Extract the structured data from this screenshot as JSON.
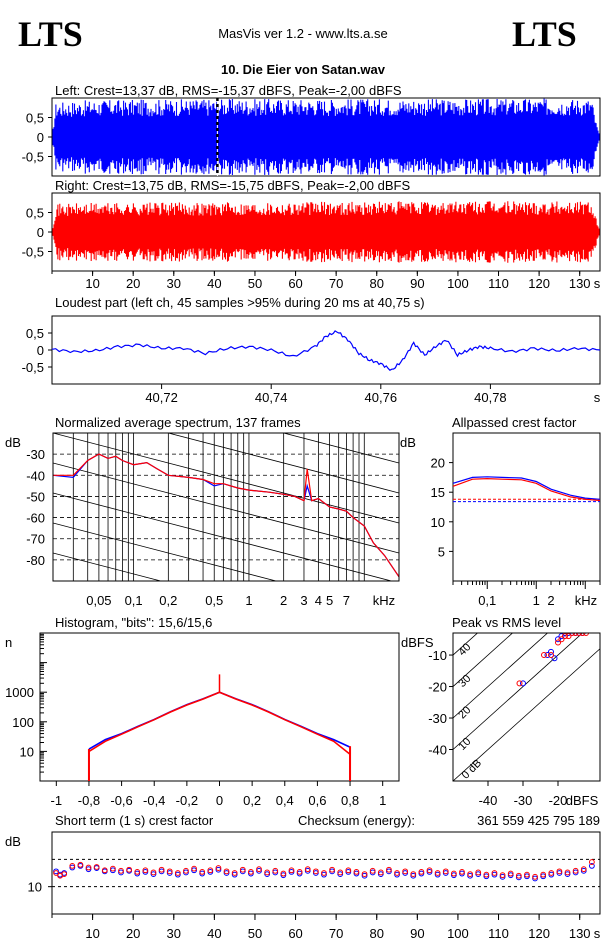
{
  "header": {
    "logo_left": "LTS",
    "logo_right": "LTS",
    "app_title": "MasVis ver 1.2 - www.lts.a.se",
    "file_title": "10. Die Eier von Satan.wav"
  },
  "colors": {
    "left": "#0000ff",
    "right": "#ff0000",
    "axis": "#000000",
    "grid": "#000000"
  },
  "chart_data": [
    {
      "id": "left_waveform",
      "type": "area",
      "title": "Left: Crest=13,37 dB, RMS=-15,37 dBFS, Peak=-2,00 dBFS",
      "ylim": [
        -1,
        1
      ],
      "yticks": [
        "0,5",
        "0",
        "-0,5"
      ],
      "xlim": [
        0,
        135
      ],
      "marker_x": 40.75,
      "envelope": [
        [
          0,
          0
        ],
        [
          1,
          0.9
        ],
        [
          10,
          0.95
        ],
        [
          40,
          0.98
        ],
        [
          100,
          0.98
        ],
        [
          133,
          0.99
        ],
        [
          134,
          0.4
        ],
        [
          135,
          0
        ]
      ],
      "color": "#0000ff"
    },
    {
      "id": "right_waveform",
      "type": "area",
      "title": "Right: Crest=13,75 dB, RMS=-15,75 dBFS, Peak=-2,00 dBFS",
      "ylim": [
        -1,
        1
      ],
      "yticks": [
        "0,5",
        "0",
        "-0,5"
      ],
      "xlim": [
        0,
        135
      ],
      "xticks": [
        "10",
        "20",
        "30",
        "40",
        "50",
        "60",
        "70",
        "80",
        "90",
        "100",
        "110",
        "120",
        "130"
      ],
      "xunit": "s",
      "envelope": [
        [
          0,
          0
        ],
        [
          1,
          0.72
        ],
        [
          10,
          0.75
        ],
        [
          70,
          0.78
        ],
        [
          120,
          0.8
        ],
        [
          133,
          0.8
        ],
        [
          134,
          0.4
        ],
        [
          135,
          0
        ]
      ],
      "color": "#ff0000"
    },
    {
      "id": "loudest_part",
      "type": "line",
      "title": "Loudest part (left  ch, 45 samples >95% during 20 ms at 40,75 s)",
      "xlim": [
        40.7,
        40.8
      ],
      "ylim": [
        -1,
        1
      ],
      "xticks": [
        "40,72",
        "40,74",
        "40,76",
        "40,78"
      ],
      "yticks": [
        "0,5",
        "0",
        "-0,5"
      ],
      "xunit": "s",
      "x": [
        40.7,
        40.704,
        40.708,
        40.712,
        40.716,
        40.72,
        40.724,
        40.728,
        40.732,
        40.736,
        40.74,
        40.744,
        40.748,
        40.75,
        40.752,
        40.754,
        40.756,
        40.758,
        40.76,
        40.762,
        40.764,
        40.766,
        40.768,
        40.77,
        40.772,
        40.774,
        40.776,
        40.778,
        40.78,
        40.784,
        40.788,
        40.792,
        40.796,
        40.8
      ],
      "y": [
        0.02,
        -0.05,
        -0.02,
        0.1,
        0.15,
        0.05,
        0.05,
        -0.1,
        0.05,
        0.1,
        0.0,
        -0.2,
        0.1,
        0.4,
        0.55,
        0.3,
        -0.1,
        -0.3,
        -0.4,
        -0.6,
        -0.3,
        0.2,
        -0.15,
        0.1,
        0.3,
        -0.15,
        0.0,
        0.1,
        0.05,
        -0.05,
        0.05,
        -0.02,
        0.05,
        0.0
      ],
      "color": "#0000ff"
    },
    {
      "id": "avg_spectrum",
      "type": "line",
      "title": "Normalized average spectrum, 137 frames",
      "ylabel": "dB",
      "xlabel": "kHz",
      "log_x": true,
      "xlim": [
        0.02,
        20
      ],
      "ylim": [
        -90,
        -20
      ],
      "yticks": [
        "-30",
        "-40",
        "-50",
        "-60",
        "-70",
        "-80"
      ],
      "xticks": [
        "0,05",
        "0,1",
        "0,2",
        "0,5",
        "1",
        "2",
        "3",
        "4",
        "5",
        "7",
        "kHz"
      ],
      "x": [
        0.02,
        0.03,
        0.04,
        0.05,
        0.06,
        0.07,
        0.08,
        0.1,
        0.13,
        0.16,
        0.2,
        0.3,
        0.4,
        0.5,
        0.6,
        0.8,
        1,
        1.5,
        2,
        2.5,
        3,
        3.2,
        3.5,
        4,
        5,
        6,
        7,
        8,
        10,
        12,
        15,
        20
      ],
      "left": [
        -40,
        -41,
        -33,
        -30,
        -32,
        -31,
        -33,
        -35,
        -34,
        -37,
        -40,
        -41,
        -42,
        -45,
        -44,
        -46,
        -47,
        -48,
        -49,
        -50,
        -52,
        -45,
        -52,
        -51,
        -55,
        -56,
        -57,
        -60,
        -64,
        -72,
        -78,
        -88
      ],
      "right": [
        -40,
        -40,
        -33,
        -30,
        -32,
        -31,
        -33,
        -35,
        -34,
        -37,
        -40,
        -41,
        -42,
        -44,
        -44,
        -46,
        -47,
        -48,
        -49,
        -50,
        -52,
        -37,
        -52,
        -51,
        -55,
        -56,
        -57,
        -60,
        -64,
        -72,
        -78,
        -88
      ]
    },
    {
      "id": "allpassed_crest",
      "type": "line",
      "title": "Allpassed crest factor",
      "ylabel": "dB",
      "xlabel": "kHz",
      "log_x": true,
      "ylim": [
        0,
        25
      ],
      "yticks": [
        "20",
        "15",
        "10",
        "5"
      ],
      "xticks": [
        "0,1",
        "1",
        "2",
        "kHz"
      ],
      "x": [
        0.02,
        0.05,
        0.1,
        0.2,
        0.5,
        1,
        2,
        5,
        10,
        20
      ],
      "left": [
        16.5,
        17.5,
        17.6,
        17.5,
        17.4,
        16.8,
        15.5,
        14.5,
        14.0,
        13.8
      ],
      "right": [
        16.0,
        17.2,
        17.3,
        17.2,
        17.1,
        16.5,
        15.2,
        14.2,
        13.8,
        13.6
      ],
      "ref_left": 13.4,
      "ref_right": 13.8
    },
    {
      "id": "histogram",
      "type": "line",
      "title": "Histogram, \"bits\": 15,6/15,6",
      "ylabel": "n",
      "log_y": true,
      "xlim": [
        -1.1,
        1.1
      ],
      "ylim": [
        1,
        100000
      ],
      "yticks": [
        "1000",
        "100",
        "10"
      ],
      "xticks": [
        "-1",
        "-0,8",
        "-0,6",
        "-0,4",
        "-0,2",
        "0",
        "0,2",
        "0,4",
        "0,6",
        "0,8",
        "1"
      ],
      "x": [
        -0.8,
        -0.7,
        -0.6,
        -0.5,
        -0.4,
        -0.3,
        -0.2,
        -0.1,
        0,
        0.1,
        0.2,
        0.3,
        0.4,
        0.5,
        0.6,
        0.7,
        0.8
      ],
      "left": [
        12,
        25,
        40,
        70,
        120,
        220,
        380,
        600,
        1000,
        600,
        380,
        220,
        120,
        70,
        40,
        25,
        14
      ],
      "right": [
        10,
        22,
        38,
        68,
        118,
        215,
        370,
        590,
        1000,
        590,
        370,
        215,
        118,
        68,
        38,
        22,
        8
      ]
    },
    {
      "id": "peak_vs_rms",
      "type": "scatter",
      "title": "Peak vs RMS level",
      "ylabel": "dBFS",
      "xlabel": "dBFS",
      "xlim": [
        -50,
        -8
      ],
      "ylim": [
        -50,
        -3
      ],
      "xticks": [
        "-40",
        "-30",
        "-20",
        "dBFS"
      ],
      "yticks": [
        "-10",
        "-20",
        "-30",
        "-40"
      ],
      "diagonal_labels": [
        "40",
        "30",
        "20",
        "10",
        "0 dB"
      ],
      "left": [
        [
          -30,
          -19
        ],
        [
          -23,
          -10
        ],
        [
          -22,
          -9
        ],
        [
          -21,
          -11
        ],
        [
          -20,
          -5
        ],
        [
          -19,
          -4
        ],
        [
          -18,
          -3
        ],
        [
          -17,
          -3
        ],
        [
          -16,
          -3
        ],
        [
          -15,
          -3
        ],
        [
          -14,
          -3
        ],
        [
          -13,
          -3
        ]
      ],
      "right": [
        [
          -31,
          -19
        ],
        [
          -24,
          -10
        ],
        [
          -22,
          -10
        ],
        [
          -20,
          -6
        ],
        [
          -19,
          -5
        ],
        [
          -18,
          -4
        ],
        [
          -17,
          -4
        ],
        [
          -16,
          -3
        ],
        [
          -15,
          -3
        ],
        [
          -14,
          -3
        ],
        [
          -13,
          -3
        ],
        [
          -12,
          -3
        ]
      ]
    },
    {
      "id": "short_term_crest",
      "type": "scatter",
      "title": "Short term (1 s) crest factor",
      "checksum_label": "Checksum (energy):",
      "checksum_value": "361 559 425 795 189",
      "ylabel": "dB",
      "ylim": [
        5,
        20
      ],
      "yticks": [
        "10"
      ],
      "ref_lines": [
        10,
        15
      ],
      "xlim": [
        0,
        135
      ],
      "xticks": [
        "10",
        "20",
        "30",
        "40",
        "50",
        "60",
        "70",
        "80",
        "90",
        "100",
        "110",
        "120",
        "130"
      ],
      "xunit": "s",
      "left": [
        [
          1,
          12.8
        ],
        [
          2,
          12.2
        ],
        [
          3,
          12.5
        ],
        [
          5,
          13.5
        ],
        [
          7,
          13.8
        ],
        [
          9,
          13.2
        ],
        [
          11,
          13.4
        ],
        [
          13,
          12.8
        ],
        [
          15,
          13.0
        ],
        [
          17,
          12.6
        ],
        [
          19,
          12.9
        ],
        [
          21,
          12.4
        ],
        [
          23,
          12.7
        ],
        [
          25,
          12.3
        ],
        [
          27,
          12.8
        ],
        [
          29,
          12.5
        ],
        [
          31,
          12.2
        ],
        [
          33,
          12.6
        ],
        [
          35,
          13.0
        ],
        [
          37,
          12.4
        ],
        [
          39,
          12.7
        ],
        [
          41,
          13.1
        ],
        [
          43,
          12.5
        ],
        [
          45,
          12.2
        ],
        [
          47,
          12.8
        ],
        [
          49,
          12.4
        ],
        [
          51,
          12.9
        ],
        [
          53,
          12.3
        ],
        [
          55,
          12.6
        ],
        [
          57,
          12.1
        ],
        [
          59,
          12.7
        ],
        [
          61,
          12.4
        ],
        [
          63,
          12.9
        ],
        [
          65,
          12.5
        ],
        [
          67,
          12.2
        ],
        [
          69,
          12.8
        ],
        [
          71,
          12.3
        ],
        [
          73,
          12.7
        ],
        [
          75,
          12.4
        ],
        [
          77,
          12.0
        ],
        [
          79,
          12.6
        ],
        [
          81,
          12.3
        ],
        [
          83,
          12.8
        ],
        [
          85,
          12.2
        ],
        [
          87,
          12.5
        ],
        [
          89,
          12.0
        ],
        [
          91,
          12.4
        ],
        [
          93,
          12.7
        ],
        [
          95,
          12.2
        ],
        [
          97,
          12.5
        ],
        [
          99,
          12.1
        ],
        [
          101,
          12.4
        ],
        [
          103,
          12.0
        ],
        [
          105,
          12.3
        ],
        [
          107,
          11.9
        ],
        [
          109,
          12.2
        ],
        [
          111,
          11.8
        ],
        [
          113,
          12.1
        ],
        [
          115,
          11.7
        ],
        [
          117,
          11.9
        ],
        [
          119,
          11.5
        ],
        [
          121,
          11.9
        ],
        [
          123,
          12.2
        ],
        [
          125,
          12.5
        ],
        [
          127,
          12.3
        ],
        [
          129,
          12.6
        ],
        [
          131,
          12.9
        ],
        [
          133,
          13.8
        ]
      ],
      "right": [
        [
          1,
          12.5
        ],
        [
          2,
          12.0
        ],
        [
          3,
          12.3
        ],
        [
          5,
          13.8
        ],
        [
          7,
          14.0
        ],
        [
          9,
          13.5
        ],
        [
          11,
          13.6
        ],
        [
          13,
          13.0
        ],
        [
          15,
          13.3
        ],
        [
          17,
          12.9
        ],
        [
          19,
          13.1
        ],
        [
          21,
          12.7
        ],
        [
          23,
          13.0
        ],
        [
          25,
          12.6
        ],
        [
          27,
          13.1
        ],
        [
          29,
          12.8
        ],
        [
          31,
          12.5
        ],
        [
          33,
          12.9
        ],
        [
          35,
          13.3
        ],
        [
          37,
          12.7
        ],
        [
          39,
          13.0
        ],
        [
          41,
          13.4
        ],
        [
          43,
          12.8
        ],
        [
          45,
          12.5
        ],
        [
          47,
          13.1
        ],
        [
          49,
          12.7
        ],
        [
          51,
          13.2
        ],
        [
          53,
          12.6
        ],
        [
          55,
          12.9
        ],
        [
          57,
          12.4
        ],
        [
          59,
          13.0
        ],
        [
          61,
          12.7
        ],
        [
          63,
          13.2
        ],
        [
          65,
          12.8
        ],
        [
          67,
          12.5
        ],
        [
          69,
          13.1
        ],
        [
          71,
          12.6
        ],
        [
          73,
          13.0
        ],
        [
          75,
          12.7
        ],
        [
          77,
          12.3
        ],
        [
          79,
          12.9
        ],
        [
          81,
          12.6
        ],
        [
          83,
          13.1
        ],
        [
          85,
          12.5
        ],
        [
          87,
          12.8
        ],
        [
          89,
          12.3
        ],
        [
          91,
          12.7
        ],
        [
          93,
          13.0
        ],
        [
          95,
          12.5
        ],
        [
          97,
          12.8
        ],
        [
          99,
          12.4
        ],
        [
          101,
          12.7
        ],
        [
          103,
          12.3
        ],
        [
          105,
          12.6
        ],
        [
          107,
          12.2
        ],
        [
          109,
          12.5
        ],
        [
          111,
          12.1
        ],
        [
          113,
          12.4
        ],
        [
          115,
          12.0
        ],
        [
          117,
          12.2
        ],
        [
          119,
          11.8
        ],
        [
          121,
          12.2
        ],
        [
          123,
          12.5
        ],
        [
          125,
          12.8
        ],
        [
          127,
          12.6
        ],
        [
          129,
          12.9
        ],
        [
          131,
          13.2
        ],
        [
          133,
          14.5
        ]
      ]
    }
  ]
}
